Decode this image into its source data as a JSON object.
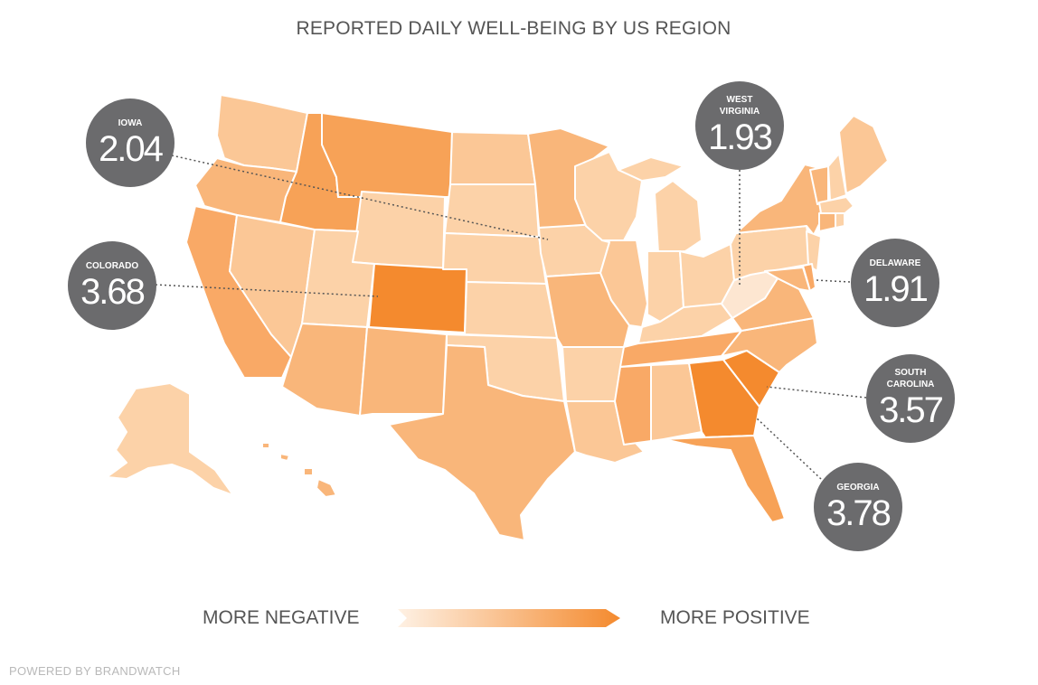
{
  "title": "REPORTED DAILY WELL-BEING BY US REGION",
  "colors": {
    "lightest": "#fde3cb",
    "light": "#fbc796",
    "medium": "#f9b67a",
    "strong": "#f7a257",
    "strongest": "#f48a2e",
    "callout_bg": "#6b6b6d"
  },
  "callouts": {
    "iowa": {
      "name": "IOWA",
      "value": "2.04"
    },
    "colorado": {
      "name": "COLORADO",
      "value": "3.68"
    },
    "west_virginia": {
      "name": "WEST VIRGINIA",
      "value": "1.93"
    },
    "delaware": {
      "name": "DELAWARE",
      "value": "1.91"
    },
    "south_carolina": {
      "name": "SOUTH CAROLINA",
      "value": "3.57"
    },
    "georgia": {
      "name": "GEORGIA",
      "value": "3.78"
    }
  },
  "legend": {
    "negative_label": "MORE NEGATIVE",
    "positive_label": "MORE POSITIVE"
  },
  "footer": "POWERED BY BRANDWATCH"
}
